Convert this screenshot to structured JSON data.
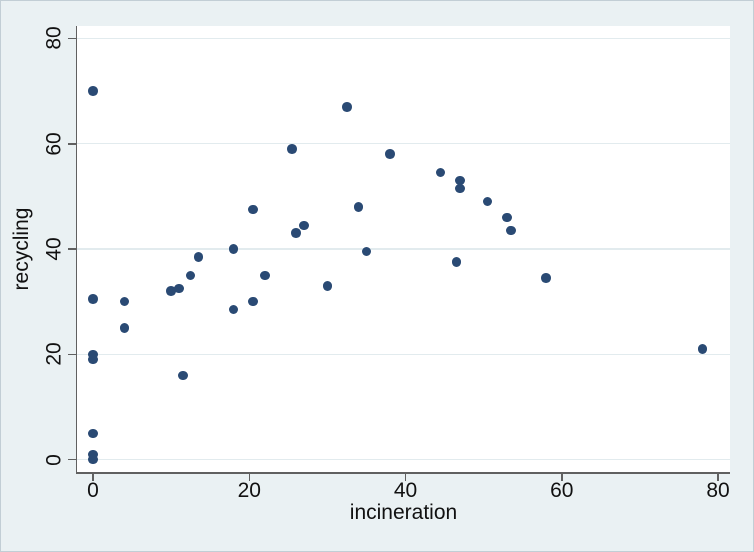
{
  "style": {
    "background_color": "#eaf1f3",
    "plot_background_color": "#ffffff",
    "grid_color": "#e2ebee",
    "axis_color": "#606060",
    "marker_color": "#2a4a74",
    "text_color": "#111111",
    "border_color": "#c2ced5"
  },
  "chart_data": {
    "type": "scatter",
    "title": "",
    "xlabel": "incineration",
    "ylabel": "recycling",
    "x_ticks": [
      0,
      20,
      40,
      60,
      80
    ],
    "y_ticks": [
      0,
      20,
      40,
      60,
      80
    ],
    "xlim": [
      -2,
      81.5
    ],
    "ylim": [
      -2.4,
      82.3
    ],
    "grid": "horizontal-only",
    "legend": "none",
    "marker": "filled-circle-navy",
    "points": [
      [
        0,
        70
      ],
      [
        0,
        30.5
      ],
      [
        0,
        20
      ],
      [
        0,
        19
      ],
      [
        0,
        5
      ],
      [
        0,
        1
      ],
      [
        0,
        0
      ],
      [
        4,
        30
      ],
      [
        4,
        25
      ],
      [
        10,
        32
      ],
      [
        11,
        32.5
      ],
      [
        11.5,
        16
      ],
      [
        12.5,
        35
      ],
      [
        13.5,
        38.5
      ],
      [
        18,
        40
      ],
      [
        18,
        28.5
      ],
      [
        20.5,
        47.5
      ],
      [
        20.5,
        30
      ],
      [
        22,
        35
      ],
      [
        25.5,
        59
      ],
      [
        26,
        43
      ],
      [
        27,
        44.5
      ],
      [
        30,
        33
      ],
      [
        32.5,
        67
      ],
      [
        34,
        48
      ],
      [
        35,
        39.5
      ],
      [
        38,
        58
      ],
      [
        44.5,
        54.5
      ],
      [
        46.5,
        37.5
      ],
      [
        47,
        53
      ],
      [
        47,
        51.5
      ],
      [
        50.5,
        49
      ],
      [
        53,
        46
      ],
      [
        53.5,
        43.5
      ],
      [
        58,
        34.5
      ],
      [
        78,
        21
      ]
    ]
  }
}
